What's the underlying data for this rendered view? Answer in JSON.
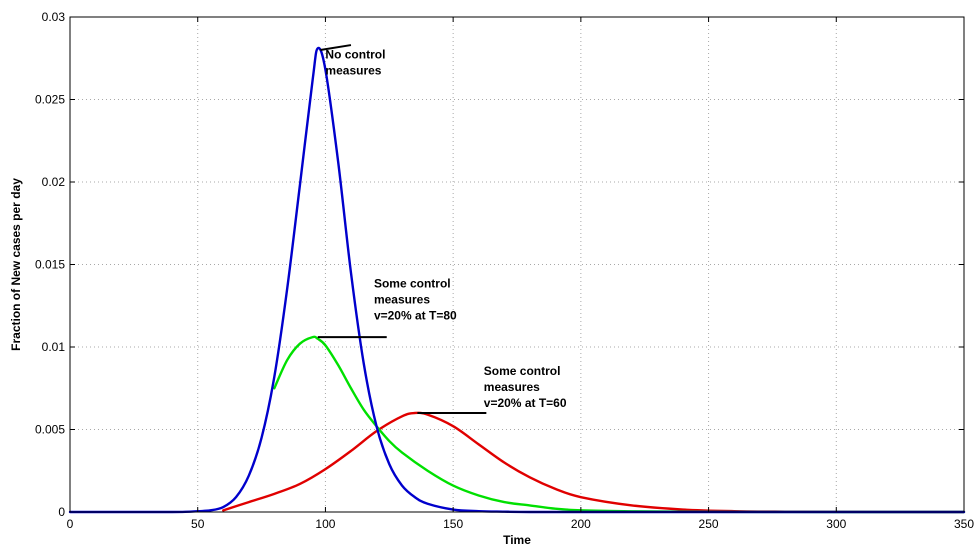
{
  "chart_data": {
    "type": "line",
    "xlabel": "Time",
    "ylabel": "Fraction of New cases per day",
    "xlim": [
      0,
      350
    ],
    "ylim": [
      0,
      0.03
    ],
    "grid": true,
    "xticks": [
      0,
      50,
      100,
      150,
      200,
      250,
      300,
      350
    ],
    "xtick_labels": [
      "0",
      "50",
      "100",
      "150",
      "200",
      "250",
      "300",
      "350"
    ],
    "yticks": [
      0,
      0.005,
      0.01,
      0.015,
      0.02,
      0.025,
      0.03
    ],
    "ytick_labels": [
      "0",
      "0.005",
      "0.01",
      "0.015",
      "0.02",
      "0.025",
      "0.03"
    ],
    "series": [
      {
        "color": "#0000cc",
        "x": [
          0,
          40,
          50,
          55,
          60,
          65,
          70,
          75,
          80,
          85,
          90,
          95,
          97,
          100,
          105,
          110,
          115,
          120,
          125,
          130,
          135,
          140,
          150,
          160,
          170,
          180,
          200,
          250,
          300,
          350
        ],
        "y": [
          0,
          0.0,
          5e-05,
          0.0001,
          0.0003,
          0.0009,
          0.0022,
          0.0045,
          0.0082,
          0.0135,
          0.0198,
          0.0262,
          0.0281,
          0.0268,
          0.0212,
          0.0145,
          0.009,
          0.0052,
          0.0029,
          0.0016,
          0.0009,
          0.0005,
          0.00015,
          5e-05,
          2e-05,
          0.0,
          0,
          0,
          0,
          0
        ]
      },
      {
        "color": "#00e000",
        "x": [
          80,
          85,
          90,
          95,
          97,
          100,
          105,
          110,
          115,
          120,
          125,
          130,
          140,
          150,
          160,
          170,
          180,
          190,
          200,
          220,
          250,
          300,
          350
        ],
        "y": [
          0.0075,
          0.0092,
          0.0102,
          0.0106,
          0.0105,
          0.0101,
          0.0089,
          0.0075,
          0.0062,
          0.0052,
          0.0043,
          0.0036,
          0.0025,
          0.0016,
          0.001,
          0.0006,
          0.0004,
          0.0002,
          0.0001,
          4e-05,
          1e-05,
          0,
          0
        ]
      },
      {
        "color": "#e00000",
        "x": [
          60,
          70,
          80,
          90,
          100,
          110,
          120,
          130,
          135,
          140,
          150,
          160,
          170,
          180,
          190,
          200,
          220,
          240,
          260,
          280,
          300,
          350
        ],
        "y": [
          0.0001,
          0.0006,
          0.0011,
          0.0017,
          0.0026,
          0.0037,
          0.0049,
          0.0058,
          0.006,
          0.0059,
          0.0052,
          0.0041,
          0.003,
          0.0021,
          0.0014,
          0.0009,
          0.0004,
          0.00015,
          5e-05,
          2e-05,
          1e-05,
          0
        ]
      }
    ],
    "annotations": [
      {
        "lines": [
          "No control",
          "measures"
        ],
        "x": 100,
        "y": 0.0275,
        "leader": [
          [
            98,
            0.028
          ],
          [
            110,
            0.0283
          ]
        ]
      },
      {
        "lines": [
          "Some control",
          "measures",
          "v=20% at T=80"
        ],
        "x": 119,
        "y": 0.0136,
        "leader": [
          [
            97,
            0.0106
          ],
          [
            124,
            0.0106
          ]
        ]
      },
      {
        "lines": [
          "Some control",
          "measures",
          "v=20% at T=60"
        ],
        "x": 162,
        "y": 0.0083,
        "leader": [
          [
            136,
            0.006
          ],
          [
            163,
            0.006
          ]
        ]
      }
    ]
  }
}
